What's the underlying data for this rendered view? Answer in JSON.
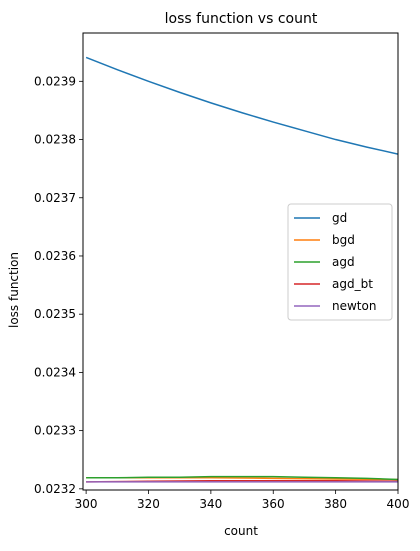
{
  "chart_data": {
    "type": "line",
    "title": "loss function vs count",
    "xlabel": "count",
    "ylabel": "loss function",
    "xlim": [
      299,
      400
    ],
    "ylim": [
      0.023198,
      0.023983
    ],
    "x_ticks": [
      300,
      320,
      340,
      360,
      380,
      400
    ],
    "x_tick_labels": [
      "300",
      "320",
      "340",
      "360",
      "380",
      "400"
    ],
    "y_ticks": [
      0.0232,
      0.0233,
      0.0234,
      0.0235,
      0.0236,
      0.0237,
      0.0238,
      0.0239
    ],
    "y_tick_labels": [
      "0.0232",
      "0.0233",
      "0.0234",
      "0.0235",
      "0.0236",
      "0.0237",
      "0.0238",
      "0.0239"
    ],
    "grid": false,
    "legend_position": "center-right",
    "series": [
      {
        "name": "gd",
        "color": "#1f77b4",
        "x": [
          300,
          310,
          320,
          330,
          340,
          350,
          360,
          370,
          380,
          390,
          400
        ],
        "y": [
          0.023941,
          0.02392,
          0.0239,
          0.023881,
          0.023863,
          0.023846,
          0.02383,
          0.023815,
          0.0238,
          0.023787,
          0.023775
        ]
      },
      {
        "name": "bgd",
        "color": "#ff7f0e",
        "x": [
          300,
          320,
          340,
          360,
          380,
          400
        ],
        "y": [
          0.023219,
          0.023219,
          0.023219,
          0.023218,
          0.023217,
          0.023216
        ]
      },
      {
        "name": "agd",
        "color": "#2ca02c",
        "x": [
          300,
          310,
          320,
          330,
          340,
          350,
          360,
          370,
          380,
          390,
          400
        ],
        "y": [
          0.023219,
          0.023219,
          0.02322,
          0.02322,
          0.023221,
          0.023221,
          0.023221,
          0.02322,
          0.023219,
          0.023218,
          0.023216
        ]
      },
      {
        "name": "agd_bt",
        "color": "#d62728",
        "x": [
          300,
          320,
          340,
          360,
          380,
          400
        ],
        "y": [
          0.023212,
          0.023213,
          0.023214,
          0.023214,
          0.023214,
          0.023213
        ]
      },
      {
        "name": "newton",
        "color": "#9467bd",
        "x": [
          300,
          320,
          340,
          360,
          380,
          400
        ],
        "y": [
          0.023212,
          0.023212,
          0.023212,
          0.023212,
          0.023212,
          0.023212
        ]
      }
    ]
  }
}
